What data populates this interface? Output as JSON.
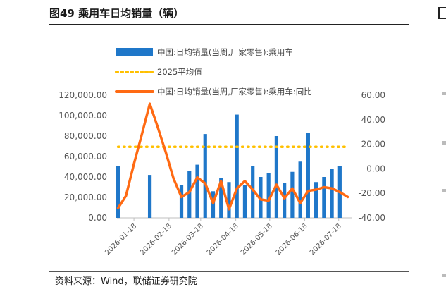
{
  "figure": {
    "title": "图49 乘用车日均销量（辆）",
    "source": "资料来源：Wind，联储证券研究院"
  },
  "colors": {
    "bar": "#1f77c9",
    "avg_line": "#ffc000",
    "yoy_line": "#ff6a13"
  },
  "chart_data": {
    "type": "bar",
    "x_tick_labels": [
      "2026-01-18",
      "2026-02-18",
      "2026-03-18",
      "2026-04-18",
      "2026-05-18",
      "2026-06-18",
      "2026-07-18"
    ],
    "x": [
      "2026-01-04",
      "2026-01-11",
      "2026-01-18",
      "2026-01-25",
      "2026-02-01",
      "2026-02-08",
      "2026-02-15",
      "2026-02-22",
      "2026-03-01",
      "2026-03-08",
      "2026-03-15",
      "2026-03-22",
      "2026-03-29",
      "2026-04-05",
      "2026-04-12",
      "2026-04-19",
      "2026-04-26",
      "2026-05-03",
      "2026-05-10",
      "2026-05-17",
      "2026-05-24",
      "2026-05-31",
      "2026-06-07",
      "2026-06-14",
      "2026-06-21",
      "2026-06-28",
      "2026-07-05",
      "2026-07-12",
      "2026-07-19",
      "2026-07-26"
    ],
    "series": [
      {
        "name": "中国:日均销量(当周,厂家零售):乘用车",
        "axis": "left",
        "type": "bar",
        "values": [
          51000,
          null,
          null,
          null,
          42000,
          null,
          null,
          null,
          32000,
          46000,
          52000,
          82000,
          26000,
          39000,
          35000,
          101000,
          32000,
          51000,
          40000,
          44000,
          80000,
          34000,
          45000,
          55000,
          83000,
          35000,
          40000,
          48000,
          51000,
          null
        ]
      },
      {
        "name": "2025平均值",
        "axis": "left",
        "type": "line",
        "style": "dotted",
        "values": [
          69500,
          69500,
          69500,
          69500,
          69500,
          69500,
          69500,
          69500,
          69500,
          69500,
          69500,
          69500,
          69500,
          69500,
          69500,
          69500,
          69500,
          69500,
          69500,
          69500,
          69500,
          69500,
          69500,
          69500,
          69500,
          69500,
          69500,
          69500,
          69500,
          69500
        ]
      },
      {
        "name": "中国:日均销量(当周,厂家零售):乘用车:同比",
        "axis": "right",
        "type": "line",
        "values": [
          -32,
          -22,
          4,
          28,
          53,
          34,
          14,
          -8,
          -23,
          -19,
          -7,
          -12,
          -28,
          -10,
          -33,
          -16,
          -10,
          -17,
          -25,
          -26,
          -13,
          -24,
          -16,
          -28,
          -18,
          -17,
          -15,
          -16,
          -19,
          -23
        ]
      }
    ],
    "y_left": {
      "range": [
        0,
        120000
      ],
      "ticks": [
        "0.00",
        "20,000.00",
        "40,000.00",
        "60,000.00",
        "80,000.00",
        "100,000.00",
        "120,000.00"
      ]
    },
    "y_right": {
      "range": [
        -40,
        60
      ],
      "ticks": [
        "-40.00",
        "-20.00",
        "0.00",
        "20.00",
        "40.00",
        "60.00"
      ]
    },
    "legend_position": "top-right"
  }
}
